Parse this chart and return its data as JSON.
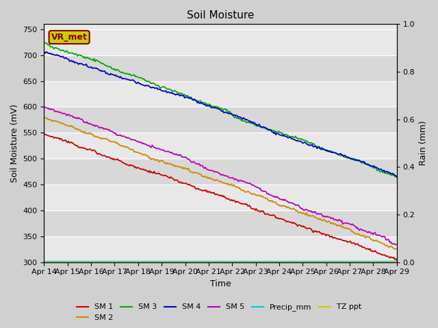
{
  "title": "Soil Moisture",
  "xlabel": "Time",
  "ylabel_left": "Soil Moisture (mV)",
  "ylabel_right": "Rain (mm)",
  "ylim_left": [
    300,
    760
  ],
  "ylim_right": [
    0.0,
    1.0
  ],
  "yticks_left": [
    300,
    350,
    400,
    450,
    500,
    550,
    600,
    650,
    700,
    750
  ],
  "yticks_right": [
    0.0,
    0.2,
    0.4,
    0.6,
    0.8,
    1.0
  ],
  "x_labels": [
    "Apr 14",
    "Apr 15",
    "Apr 16",
    "Apr 17",
    "Apr 18",
    "Apr 19",
    "Apr 20",
    "Apr 21",
    "Apr 22",
    "Apr 23",
    "Apr 24",
    "Apr 25",
    "Apr 26",
    "Apr 27",
    "Apr 28",
    "Apr 29"
  ],
  "fig_bg_color": "#d0d0d0",
  "band_colors": [
    "#e8e8e8",
    "#d8d8d8"
  ],
  "sm1_color": "#cc0000",
  "sm2_color": "#cc8800",
  "sm3_color": "#00aa00",
  "sm4_color": "#0000cc",
  "sm5_color": "#bb00bb",
  "precip_color": "#00cccc",
  "tzppt_color": "#cccc00",
  "annotation_text": "VR_met",
  "annotation_bg": "#cccc00",
  "annotation_border": "#880000"
}
